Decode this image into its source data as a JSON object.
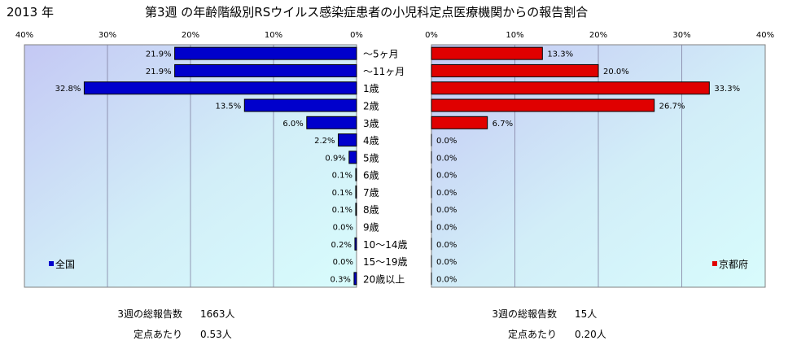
{
  "header": {
    "year_label": "2013 年",
    "title": "第3週 の年齢階級別RSウイルス感染症患者の小児科定点医療機関からの報告割合"
  },
  "colors": {
    "national_bar": "#0000CC",
    "kyoto_bar": "#E00000",
    "grid": "#8080A0"
  },
  "chart_data": [
    {
      "type": "bar",
      "orientation": "horizontal",
      "direction": "right-to-left",
      "legend": "全国",
      "legend_position": "bottom-left",
      "categories": [
        "～5ヶ月",
        "～11ヶ月",
        "1歳",
        "2歳",
        "3歳",
        "4歳",
        "5歳",
        "6歳",
        "7歳",
        "8歳",
        "9歳",
        "10～14歳",
        "15～19歳",
        "20歳以上"
      ],
      "series": [
        {
          "name": "全国",
          "values": [
            21.9,
            21.9,
            32.8,
            13.5,
            6.0,
            2.2,
            0.9,
            0.1,
            0.1,
            0.1,
            0.0,
            0.2,
            0.0,
            0.3
          ]
        }
      ],
      "value_labels": [
        "21.9%",
        "21.9%",
        "32.8%",
        "13.5%",
        "6.0%",
        "2.2%",
        "0.9%",
        "0.1%",
        "0.1%",
        "0.1%",
        "0.0%",
        "0.2%",
        "0.0%",
        "0.3%"
      ],
      "xlim": [
        0,
        40
      ],
      "ticks": [
        "40%",
        "30%",
        "20%",
        "10%",
        "0%"
      ],
      "grid": true
    },
    {
      "type": "bar",
      "orientation": "horizontal",
      "direction": "left-to-right",
      "legend": "京都府",
      "legend_position": "bottom-right",
      "categories": [
        "～5ヶ月",
        "～11ヶ月",
        "1歳",
        "2歳",
        "3歳",
        "4歳",
        "5歳",
        "6歳",
        "7歳",
        "8歳",
        "9歳",
        "10～14歳",
        "15～19歳",
        "20歳以上"
      ],
      "series": [
        {
          "name": "京都府",
          "values": [
            13.3,
            20.0,
            33.3,
            26.7,
            6.7,
            0.0,
            0.0,
            0.0,
            0.0,
            0.0,
            0.0,
            0.0,
            0.0,
            0.0
          ]
        }
      ],
      "value_labels": [
        "13.3%",
        "20.0%",
        "33.3%",
        "26.7%",
        "6.7%",
        "0.0%",
        "0.0%",
        "0.0%",
        "0.0%",
        "0.0%",
        "0.0%",
        "0.0%",
        "0.0%",
        "0.0%"
      ],
      "xlim": [
        0,
        40
      ],
      "ticks": [
        "0%",
        "10%",
        "20%",
        "30%",
        "40%"
      ],
      "grid": true
    }
  ],
  "summary": {
    "national": {
      "total_label": "3週の総報告数",
      "total_value": "1663人",
      "per_site_label": "定点あたり",
      "per_site_value": "0.53人"
    },
    "kyoto": {
      "total_label": "3週の総報告数",
      "total_value": "15人",
      "per_site_label": "定点あたり",
      "per_site_value": "0.20人"
    }
  }
}
